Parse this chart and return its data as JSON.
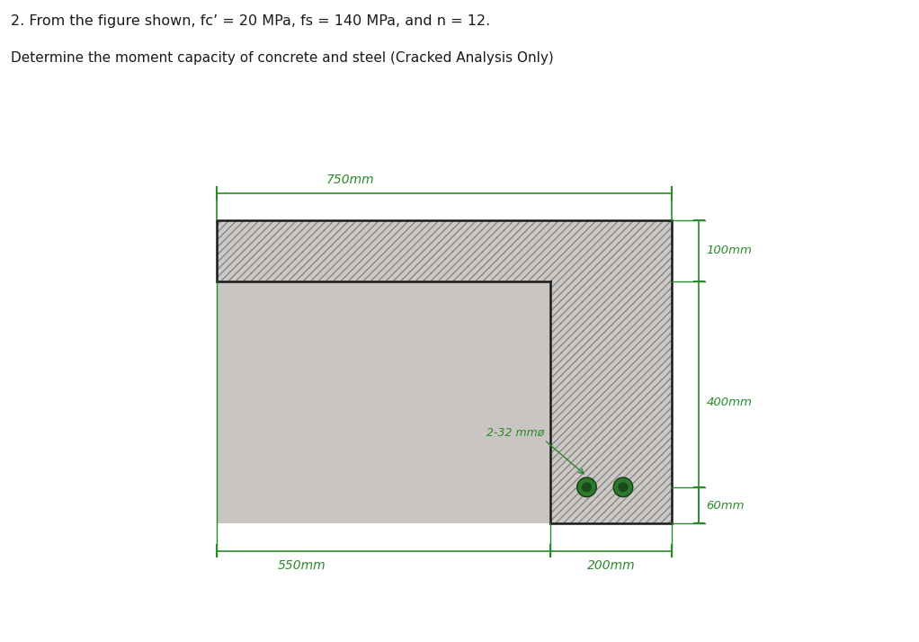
{
  "title_line1": "2. From the figure shown, fc’ = 20 MPa, fs = 140 MPa, and n = 12.",
  "title_line2": "Determine the moment capacity of concrete and steel (Cracked Analysis Only)",
  "panel_bg": "#c8c5c2",
  "hatch_fill": "#c8c5c2",
  "outline_color": "#1a1a1a",
  "dim_color": "#2a8a2a",
  "bar_color": "#2a7a2a",
  "bar_inner_color": "#1a4a1a",
  "text_color": "#1a1a1a",
  "dim_750": "750mm",
  "dim_100": "100mm",
  "dim_400": "400mm",
  "dim_60": "60mm",
  "dim_550": "550mm",
  "dim_200": "200mm",
  "bar_label": "2-32 mmø",
  "fig_width": 10.22,
  "fig_height": 7.14
}
